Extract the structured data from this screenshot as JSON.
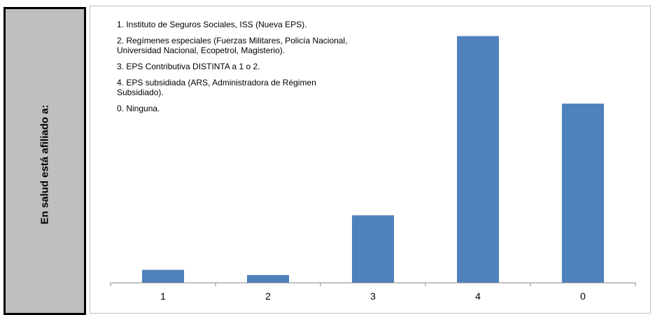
{
  "side_label": "En salud está afiliado a:",
  "legend": [
    "1. Instituto de Seguros Sociales, ISS (Nueva EPS).",
    "2. Regímenes especiales (Fuerzas Militares, Policía Nacional, Universidad Nacional, Ecopetrol, Magisterio).",
    "3. EPS Contributiva DISTINTA a 1 o 2.",
    "4. EPS subsidiada (ARS, Administradora de Régimen Subsidiado).",
    "0. Ninguna."
  ],
  "chart_data": {
    "type": "bar",
    "categories": [
      "1",
      "2",
      "3",
      "4",
      "0"
    ],
    "values": [
      5,
      3,
      26,
      95,
      69
    ],
    "ylim": [
      0,
      100
    ],
    "grid": false,
    "bar_color": "#4f81bd"
  }
}
